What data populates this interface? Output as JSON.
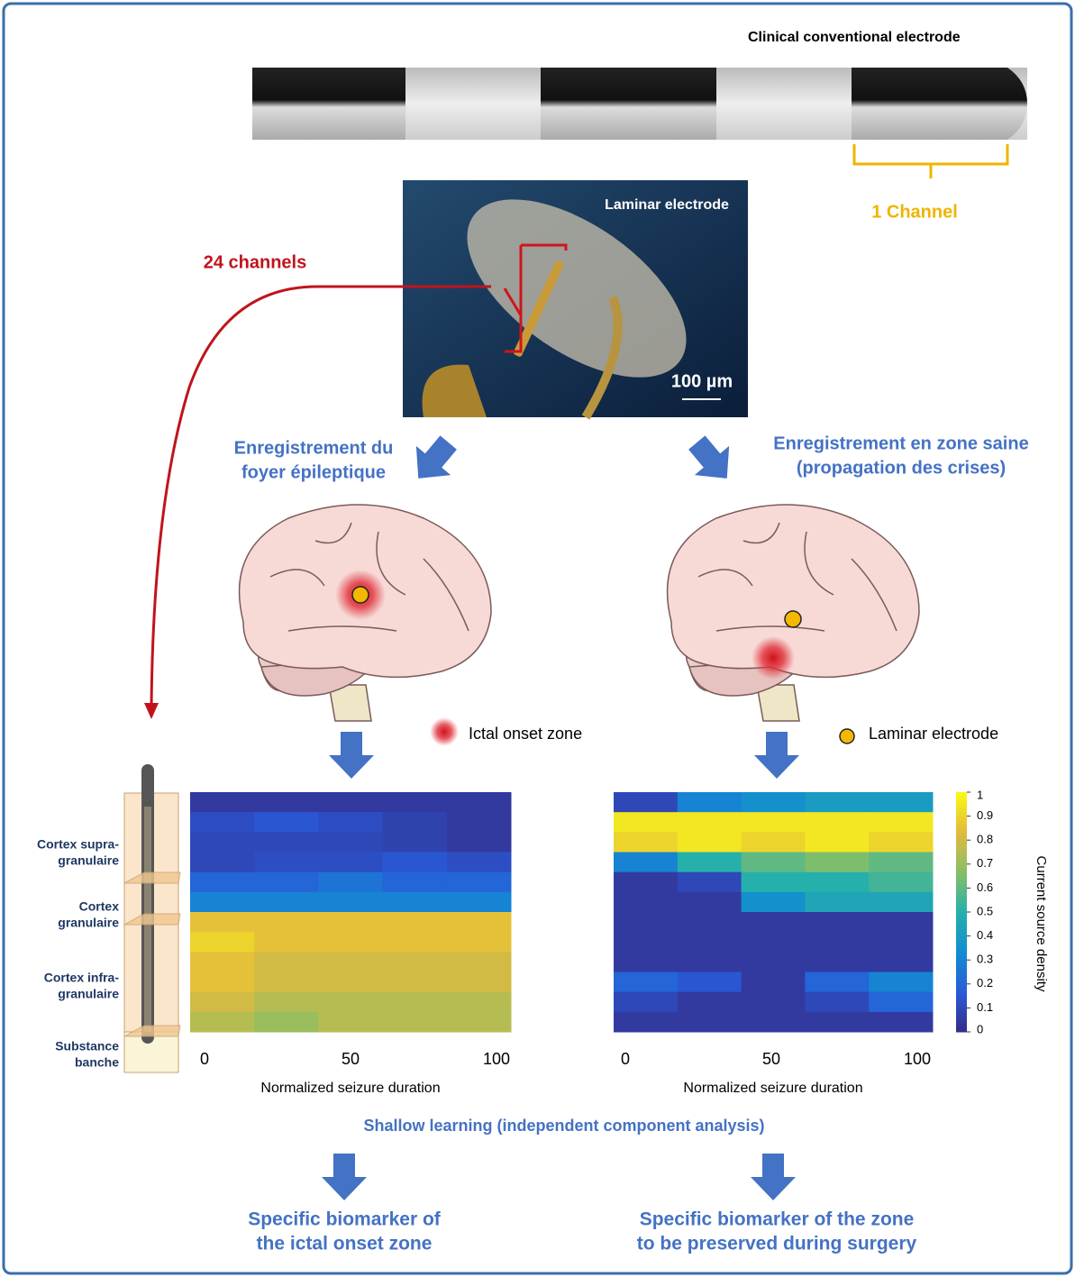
{
  "electrode": {
    "title": "Clinical conventional electrode",
    "channel_label": "1 Channel"
  },
  "laminar": {
    "title": "Laminar electrode",
    "scale": "100 µm",
    "channels_label": "24 channels"
  },
  "recording": {
    "left": [
      "Enregistrement du",
      "foyer épileptique"
    ],
    "right": [
      "Enregistrement en zone saine",
      "(propagation des crises)"
    ]
  },
  "legend": {
    "ictal": "Ictal onset zone",
    "electrode": "Laminar electrode"
  },
  "layers": [
    [
      "Cortex supra-",
      "granulaire"
    ],
    [
      "Cortex",
      "granulaire"
    ],
    [
      "Cortex infra-",
      "granulaire"
    ],
    [
      "Substance",
      "banche"
    ]
  ],
  "heatmaps": {
    "clim": [
      0,
      1
    ],
    "cticks": [
      0,
      0.1,
      0.2,
      0.3,
      0.4,
      0.5,
      0.6,
      0.7,
      0.8,
      0.9,
      1
    ],
    "clabel": "Current source density",
    "left": {
      "xlim": [
        0,
        100
      ],
      "xticks": [
        0,
        50,
        100
      ],
      "xlabel": "Normalized seizure duration",
      "rows": [
        [
          0.05,
          0.05,
          0.05,
          0.05,
          0.05
        ],
        [
          0.12,
          0.15,
          0.12,
          0.08,
          0.05
        ],
        [
          0.1,
          0.1,
          0.1,
          0.08,
          0.05
        ],
        [
          0.1,
          0.12,
          0.12,
          0.15,
          0.12
        ],
        [
          0.2,
          0.2,
          0.25,
          0.2,
          0.2
        ],
        [
          0.3,
          0.3,
          0.3,
          0.3,
          0.3
        ],
        [
          0.85,
          0.85,
          0.85,
          0.85,
          0.85
        ],
        [
          0.9,
          0.85,
          0.85,
          0.85,
          0.85
        ],
        [
          0.85,
          0.8,
          0.8,
          0.8,
          0.8
        ],
        [
          0.85,
          0.8,
          0.8,
          0.8,
          0.8
        ],
        [
          0.8,
          0.75,
          0.75,
          0.75,
          0.75
        ],
        [
          0.75,
          0.7,
          0.75,
          0.75,
          0.75
        ]
      ]
    },
    "right": {
      "xlim": [
        0,
        100
      ],
      "xticks": [
        0,
        50,
        100
      ],
      "xlabel": "Normalized seizure duration",
      "rows": [
        [
          0.1,
          0.3,
          0.35,
          0.4,
          0.4
        ],
        [
          0.95,
          0.95,
          0.95,
          0.95,
          0.95
        ],
        [
          0.9,
          0.95,
          0.9,
          0.95,
          0.9
        ],
        [
          0.3,
          0.5,
          0.6,
          0.65,
          0.6
        ],
        [
          0.05,
          0.1,
          0.5,
          0.5,
          0.55
        ],
        [
          0.05,
          0.05,
          0.35,
          0.45,
          0.45
        ],
        [
          0.05,
          0.05,
          0.05,
          0.05,
          0.05
        ],
        [
          0.05,
          0.05,
          0.05,
          0.05,
          0.05
        ],
        [
          0.05,
          0.05,
          0.05,
          0.05,
          0.05
        ],
        [
          0.2,
          0.15,
          0.05,
          0.2,
          0.3
        ],
        [
          0.1,
          0.05,
          0.05,
          0.1,
          0.2
        ],
        [
          0.05,
          0.05,
          0.05,
          0.05,
          0.05
        ]
      ]
    }
  },
  "method": "Shallow learning (independent component analysis)",
  "outcomes": {
    "left": [
      "Specific biomarker of",
      "the ictal onset zone"
    ],
    "right": [
      "Specific biomarker of the zone",
      "to be preserved during surgery"
    ]
  }
}
